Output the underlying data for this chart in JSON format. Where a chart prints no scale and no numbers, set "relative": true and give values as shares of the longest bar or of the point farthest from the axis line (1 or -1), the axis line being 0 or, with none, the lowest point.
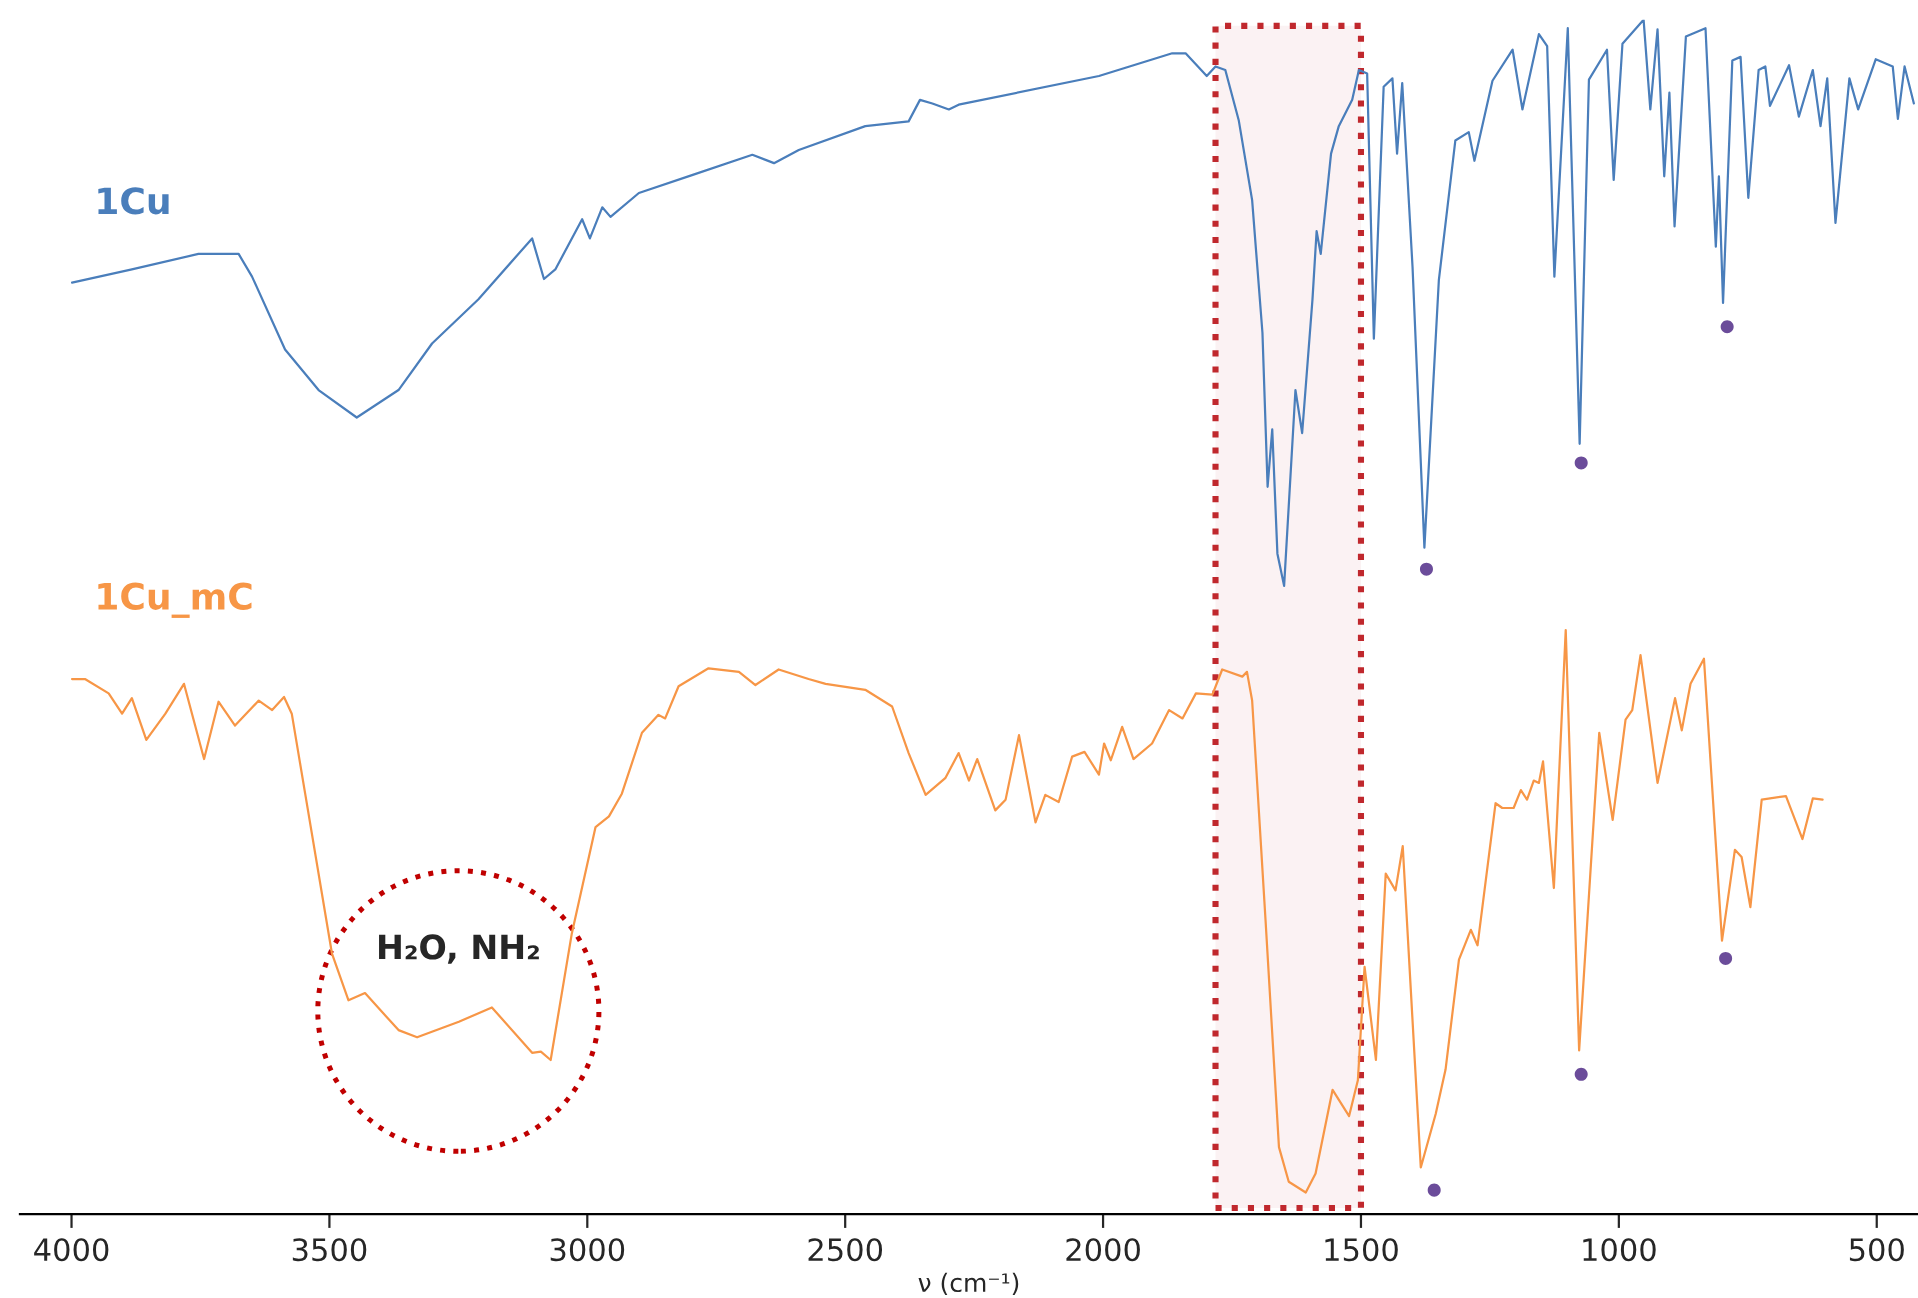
{
  "chart_data": {
    "type": "line",
    "relative": true,
    "xlabel": "ν (cm⁻¹)",
    "xlim": [
      4100,
      420
    ],
    "xticks": [
      4000,
      3500,
      3000,
      2500,
      2000,
      1500,
      1000,
      500
    ],
    "tick_labels": "x",
    "grid": false,
    "legend": false,
    "marker": "none",
    "line_style": "solid",
    "series": [
      {
        "name": "1Cu",
        "color": "#4a7ebb",
        "x": [
          3999,
          3883,
          3754,
          3676,
          3650,
          3586,
          3521,
          3447,
          3366,
          3301,
          3211,
          3107,
          3084,
          3062,
          3010,
          2995,
          2971,
          2955,
          2900,
          2797,
          2680,
          2638,
          2590,
          2461,
          2377,
          2355,
          2331,
          2299,
          2280,
          2008,
          1866,
          1840,
          1799,
          1782,
          1763,
          1737,
          1711,
          1691,
          1681,
          1672,
          1662,
          1649,
          1627,
          1614,
          1594,
          1586,
          1578,
          1558,
          1543,
          1517,
          1504,
          1488,
          1475,
          1456,
          1439,
          1430,
          1420,
          1400,
          1377,
          1349,
          1317,
          1291,
          1280,
          1245,
          1206,
          1187,
          1155,
          1139,
          1125,
          1099,
          1076,
          1058,
          1023,
          1010,
          993,
          952,
          939,
          925,
          912,
          902,
          892,
          870,
          832,
          812,
          806,
          798,
          780,
          764,
          749,
          729,
          716,
          707,
          670,
          651,
          624,
          609,
          596,
          580,
          553,
          536,
          502,
          469,
          459,
          446,
          428
        ],
        "values": [
          0.78,
          0.791,
          0.804,
          0.804,
          0.785,
          0.724,
          0.69,
          0.667,
          0.69,
          0.729,
          0.766,
          0.817,
          0.783,
          0.791,
          0.833,
          0.817,
          0.843,
          0.835,
          0.855,
          0.87,
          0.887,
          0.88,
          0.891,
          0.911,
          0.915,
          0.933,
          0.93,
          0.925,
          0.929,
          0.953,
          0.972,
          0.972,
          0.953,
          0.961,
          0.958,
          0.916,
          0.849,
          0.738,
          0.609,
          0.657,
          0.553,
          0.526,
          0.69,
          0.654,
          0.766,
          0.823,
          0.804,
          0.888,
          0.911,
          0.933,
          0.958,
          0.955,
          0.733,
          0.944,
          0.951,
          0.888,
          0.947,
          0.793,
          0.558,
          0.782,
          0.899,
          0.906,
          0.882,
          0.949,
          0.975,
          0.925,
          0.988,
          0.978,
          0.785,
          0.993,
          0.645,
          0.95,
          0.975,
          0.866,
          0.98,
          1.0,
          0.925,
          0.992,
          0.869,
          0.939,
          0.827,
          0.986,
          0.993,
          0.81,
          0.869,
          0.763,
          0.966,
          0.969,
          0.851,
          0.958,
          0.961,
          0.928,
          0.962,
          0.919,
          0.958,
          0.911,
          0.951,
          0.83,
          0.951,
          0.925,
          0.967,
          0.961,
          0.917,
          0.961,
          0.93
        ]
      },
      {
        "name": "1Cu_mC",
        "color": "#f79646",
        "x": [
          3999,
          3974,
          3928,
          3902,
          3883,
          3855,
          3818,
          3782,
          3743,
          3715,
          3683,
          3637,
          3611,
          3588,
          3573,
          3547,
          3495,
          3463,
          3431,
          3366,
          3330,
          3249,
          3185,
          3107,
          3090,
          3071,
          3030,
          2984,
          2958,
          2933,
          2894,
          2862,
          2849,
          2823,
          2765,
          2706,
          2674,
          2629,
          2571,
          2538,
          2461,
          2409,
          2377,
          2344,
          2306,
          2280,
          2260,
          2244,
          2209,
          2189,
          2163,
          2131,
          2112,
          2086,
          2060,
          2036,
          2008,
          1998,
          1985,
          1963,
          1941,
          1905,
          1872,
          1846,
          1820,
          1788,
          1769,
          1730,
          1721,
          1711,
          1685,
          1659,
          1640,
          1607,
          1588,
          1555,
          1523,
          1506,
          1493,
          1471,
          1452,
          1433,
          1419,
          1384,
          1355,
          1336,
          1310,
          1287,
          1274,
          1239,
          1226,
          1204,
          1190,
          1178,
          1165,
          1155,
          1147,
          1126,
          1103,
          1077,
          1038,
          1012,
          987,
          974,
          958,
          925,
          891,
          878,
          861,
          835,
          800,
          775,
          762,
          745,
          723,
          676,
          644,
          624,
          605
        ],
        "values": [
          0.448,
          0.448,
          0.436,
          0.419,
          0.432,
          0.397,
          0.419,
          0.444,
          0.381,
          0.429,
          0.409,
          0.43,
          0.422,
          0.433,
          0.419,
          0.352,
          0.218,
          0.179,
          0.185,
          0.154,
          0.148,
          0.161,
          0.173,
          0.135,
          0.136,
          0.129,
          0.235,
          0.324,
          0.333,
          0.352,
          0.403,
          0.418,
          0.415,
          0.442,
          0.457,
          0.454,
          0.443,
          0.456,
          0.448,
          0.444,
          0.439,
          0.425,
          0.386,
          0.351,
          0.365,
          0.386,
          0.363,
          0.381,
          0.338,
          0.347,
          0.401,
          0.328,
          0.351,
          0.345,
          0.383,
          0.387,
          0.368,
          0.394,
          0.38,
          0.408,
          0.381,
          0.394,
          0.422,
          0.415,
          0.436,
          0.435,
          0.456,
          0.45,
          0.454,
          0.43,
          0.246,
          0.056,
          0.027,
          0.018,
          0.034,
          0.104,
          0.082,
          0.112,
          0.207,
          0.129,
          0.285,
          0.271,
          0.308,
          0.039,
          0.084,
          0.121,
          0.213,
          0.238,
          0.225,
          0.344,
          0.34,
          0.34,
          0.355,
          0.347,
          0.363,
          0.361,
          0.379,
          0.273,
          0.489,
          0.137,
          0.403,
          0.33,
          0.414,
          0.422,
          0.468,
          0.361,
          0.432,
          0.405,
          0.444,
          0.465,
          0.229,
          0.305,
          0.299,
          0.257,
          0.347,
          0.35,
          0.314,
          0.348,
          0.347
        ]
      },
      {
        "type": "scatter",
        "color": "#6b4c9a",
        "marker": "circle",
        "x": [
          1373,
          1073,
          790,
          1358,
          1073,
          793
        ],
        "values": [
          0.54,
          0.629,
          0.743,
          0.02,
          0.117,
          0.214
        ]
      }
    ],
    "bands": [
      {
        "axis": "x",
        "from": 1782,
        "to": 1500,
        "color": "#c0282d"
      }
    ],
    "annotations": [
      {
        "text": "H₂O, NH₂",
        "x": 3250,
        "y": 0.17
      }
    ]
  }
}
